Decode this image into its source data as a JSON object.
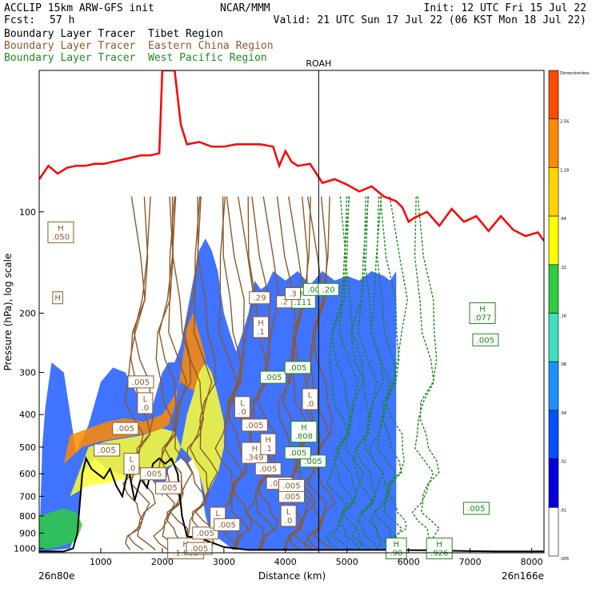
{
  "header": {
    "model": "ACCLIP 15km ARW-GFS init",
    "fcst_label": "Fcst:",
    "fcst_value": "57 h",
    "org": "NCAR/MMM",
    "init": "Init: 12 UTC Fri 15 Jul 22",
    "valid": "Valid: 21 UTC Sun 17 Jul 22 (06 KST Mon 18 Jul 22)"
  },
  "legend": [
    {
      "label": "Boundary Layer Tracer  Tibet Region",
      "color": "#000000"
    },
    {
      "label": "Boundary Layer Tracer  Eastern China Region",
      "color": "#8B5A2B"
    },
    {
      "label": "Boundary Layer Tracer  West Pacific Region",
      "color": "#228B22"
    }
  ],
  "colors": {
    "tropopause": "#ff0000",
    "terrain": "#000000",
    "tibet": "#000000",
    "china": "#8B5A2B",
    "pacific": "#1a8a1a"
  },
  "chart_data": {
    "type": "cross-section",
    "xlabel": "Distance (km)",
    "ylabel": "Pressure (hPa), log scale",
    "x_ticks": [
      1000,
      2000,
      3000,
      4000,
      5000,
      6000,
      7000,
      8000
    ],
    "xlim": [
      0,
      8200
    ],
    "y_ticks": [
      100,
      200,
      300,
      400,
      500,
      600,
      700,
      800,
      900,
      1000
    ],
    "ylim": [
      1030,
      38
    ],
    "y_scale": "log",
    "left_endpoint": "26n80e",
    "right_endpoint": "26n166e",
    "marker": {
      "label": "ROAH",
      "x": 4540
    },
    "colorbar": {
      "boundaries": [
        "Dimensionless",
        "2.56",
        "1.28",
        ".64",
        ".32",
        ".16",
        ".08",
        ".04",
        ".02",
        ".01",
        ".005"
      ],
      "colors": [
        "#ff4a00",
        "#ff8a00",
        "#ffd400",
        "#ffff00",
        "#2ecc40",
        "#3ee0c0",
        "#1e90ff",
        "#0050ff",
        "#0000dd",
        "#ffffff"
      ]
    },
    "tropopause_line": {
      "x": [
        0,
        150,
        300,
        450,
        600,
        750,
        900,
        1050,
        1200,
        1350,
        1500,
        1650,
        1800,
        1950,
        2000,
        2050,
        2200,
        2300,
        2400,
        2600,
        2800,
        3000,
        3200,
        3400,
        3600,
        3800,
        3900,
        4000,
        4100,
        4200,
        4400,
        4600,
        4800,
        5000,
        5200,
        5400,
        5600,
        5800,
        5900,
        6000,
        6100,
        6300,
        6500,
        6700,
        6900,
        7100,
        7300,
        7500,
        7700,
        7900,
        8100,
        8200
      ],
      "p": [
        80,
        73,
        77,
        74,
        73,
        73,
        72,
        72,
        71,
        70,
        69,
        68,
        68,
        67,
        38,
        38,
        38,
        55,
        63,
        62,
        64,
        64,
        63,
        63,
        63,
        64,
        73,
        66,
        71,
        73,
        72,
        82,
        80,
        83,
        87,
        84,
        90,
        93,
        97,
        107,
        104,
        100,
        110,
        98,
        107,
        103,
        114,
        103,
        113,
        118,
        115,
        122
      ]
    },
    "terrain_line": {
      "x": [
        0,
        200,
        400,
        550,
        620,
        700,
        760,
        850,
        950,
        1050,
        1150,
        1250,
        1350,
        1450,
        1550,
        1650,
        1750,
        1850,
        1950,
        2050,
        2150,
        2250,
        2320,
        2400,
        2600,
        2800,
        3000,
        3200,
        3400,
        3600,
        3800,
        4000,
        4200,
        4400,
        4600,
        4800,
        5000,
        5400,
        5800,
        6200,
        6600,
        7000,
        7400,
        7800,
        8200
      ],
      "p": [
        1020,
        1020,
        1020,
        1000,
        900,
        600,
        540,
        580,
        600,
        620,
        580,
        650,
        700,
        580,
        720,
        620,
        660,
        560,
        540,
        560,
        540,
        600,
        800,
        920,
        930,
        960,
        990,
        1000,
        1010,
        1010,
        1010,
        1010,
        1010,
        1010,
        1010,
        1010,
        1010,
        1010,
        1010,
        1012,
        1015,
        1018,
        1020,
        1020,
        1020
      ]
    },
    "shaded_layers": [
      {
        "name": "Dimensionless",
        "x": [
          0,
          500,
          600,
          700,
          900,
          1100,
          1300,
          1500,
          1700,
          1900,
          2000,
          2100,
          2200,
          2300,
          2400,
          2500,
          2600,
          2700,
          2800,
          2900,
          3000,
          3100,
          3200,
          3300,
          3400,
          3500,
          3600,
          3700,
          3800,
          3900,
          4000,
          4200,
          4400,
          4600,
          4800,
          5000,
          5200,
          5400,
          5600,
          5700,
          5800,
          5800,
          5700,
          5600,
          5400,
          5200,
          5000,
          4800,
          4600,
          4400,
          4200,
          4000,
          3900,
          3800,
          3700,
          3600,
          3500,
          3400,
          3300,
          3200,
          3100,
          3000,
          2900,
          2800,
          2700,
          2600,
          2500,
          2400,
          2300,
          2200,
          2100,
          2000,
          1800,
          1600,
          1400,
          1200,
          1000,
          800,
          600,
          400,
          200,
          100,
          50
        ],
        "p": [
          1020,
          1000,
          900,
          600,
          540,
          580,
          600,
          620,
          580,
          650,
          700,
          580,
          560,
          540,
          560,
          540,
          600,
          800,
          920,
          930,
          960,
          990,
          1000,
          1010,
          1010,
          1010,
          1010,
          1010,
          1010,
          1010,
          1010,
          1010,
          1010,
          1010,
          1010,
          1010,
          1010,
          1010,
          1010,
          1010,
          1010,
          150,
          160,
          155,
          150,
          160,
          155,
          160,
          150,
          165,
          150,
          160,
          155,
          150,
          165,
          170,
          160,
          200,
          230,
          260,
          230,
          200,
          150,
          130,
          120,
          130,
          160,
          200,
          250,
          280,
          280,
          300,
          400,
          350,
          300,
          290,
          320,
          430,
          520,
          300,
          280,
          380,
          500
        ]
      },
      {
        "name": "2.56",
        "x": [
          400,
          700,
          1000,
          1300,
          1600,
          1900,
          2100,
          2200,
          2300,
          2400,
          2500,
          2600,
          2700,
          2600,
          2500,
          2400,
          2300,
          2200,
          2000,
          1700,
          1400,
          1100,
          800,
          500,
          400
        ],
        "p": [
          560,
          500,
          480,
          470,
          460,
          450,
          430,
          380,
          300,
          220,
          200,
          230,
          270,
          320,
          340,
          330,
          320,
          350,
          400,
          420,
          410,
          420,
          440,
          460,
          560
        ]
      },
      {
        "name": "0.64",
        "x": [
          500,
          800,
          1100,
          1400,
          1700,
          2000,
          2200,
          2300,
          2400,
          2500,
          2600,
          2700,
          2800,
          2900,
          3000,
          3000,
          2900,
          2800,
          2700,
          2600,
          2500,
          2400,
          2300,
          2200,
          2000,
          1700,
          1400,
          1100,
          800,
          500
        ],
        "p": [
          700,
          650,
          640,
          620,
          600,
          580,
          560,
          500,
          400,
          350,
          300,
          280,
          300,
          350,
          420,
          500,
          600,
          650,
          700,
          600,
          550,
          520,
          500,
          450,
          440,
          460,
          470,
          480,
          500,
          700
        ]
      },
      {
        "name": "0.16",
        "x": [
          0,
          200,
          400,
          600,
          700,
          600,
          400,
          200,
          0
        ],
        "p": [
          800,
          780,
          760,
          780,
          850,
          950,
          980,
          1000,
          1000
        ]
      }
    ],
    "peak_labels": [
      {
        "text": "H\n.050",
        "x": 350,
        "p": 115,
        "series": "china"
      },
      {
        "text": "H",
        "x": 300,
        "p": 180,
        "series": "china"
      },
      {
        "text": ".005",
        "x": 1650,
        "p": 320,
        "series": "china"
      },
      {
        "text": "L\n.0",
        "x": 1720,
        "p": 370,
        "series": "china"
      },
      {
        "text": ".005",
        "x": 1400,
        "p": 440,
        "series": "china"
      },
      {
        "text": ".005",
        "x": 1100,
        "p": 510,
        "series": "china"
      },
      {
        "text": "L\n.0",
        "x": 1500,
        "p": 560,
        "series": "china"
      },
      {
        "text": ".005",
        "x": 1850,
        "p": 600,
        "series": "china"
      },
      {
        "text": ".005",
        "x": 2100,
        "p": 660,
        "series": "china"
      },
      {
        "text": "H\n.1.003",
        "x": 2380,
        "p": 1000,
        "series": "china"
      },
      {
        "text": ".005",
        "x": 2600,
        "p": 1000,
        "series": "china"
      },
      {
        "text": ".005",
        "x": 2700,
        "p": 900,
        "series": "china"
      },
      {
        "text": "L\n.0",
        "x": 2900,
        "p": 810,
        "series": "china"
      },
      {
        "text": ".005",
        "x": 3050,
        "p": 850,
        "series": "china"
      },
      {
        "text": "L\n.0",
        "x": 3300,
        "p": 380,
        "series": "china"
      },
      {
        "text": ".005",
        "x": 3500,
        "p": 430,
        "series": "china"
      },
      {
        "text": "H\n.349",
        "x": 3500,
        "p": 520,
        "series": "china"
      },
      {
        "text": ".005",
        "x": 3720,
        "p": 580,
        "series": "china"
      },
      {
        "text": "H\n.1",
        "x": 3720,
        "p": 490,
        "series": "china"
      },
      {
        "text": ".005",
        "x": 3900,
        "p": 640,
        "series": "china"
      },
      {
        "text": "L\n.0",
        "x": 4050,
        "p": 800,
        "series": "china"
      },
      {
        "text": ".005",
        "x": 4100,
        "p": 700,
        "series": "china"
      },
      {
        "text": ".005",
        "x": 4100,
        "p": 650,
        "series": "china"
      },
      {
        "text": "H\n.808",
        "x": 4300,
        "p": 450,
        "series": "pacific"
      },
      {
        "text": ".005",
        "x": 4450,
        "p": 550,
        "series": "pacific"
      },
      {
        "text": "H\n.111",
        "x": 4280,
        "p": 180,
        "series": "pacific"
      },
      {
        "text": ".005",
        "x": 4500,
        "p": 170,
        "series": "pacific"
      },
      {
        "text": ".20",
        "x": 4700,
        "p": 170,
        "series": "pacific"
      },
      {
        "text": ".005",
        "x": 3800,
        "p": 310,
        "series": "pacific"
      },
      {
        "text": ".005",
        "x": 4200,
        "p": 290,
        "series": "pacific"
      },
      {
        "text": "L\n.0",
        "x": 4400,
        "p": 360,
        "series": "china"
      },
      {
        "text": ".005",
        "x": 4200,
        "p": 520,
        "series": "pacific"
      },
      {
        "text": "H\n.077",
        "x": 7200,
        "p": 200,
        "series": "pacific"
      },
      {
        "text": ".005",
        "x": 7250,
        "p": 240,
        "series": "pacific"
      },
      {
        "text": ".005",
        "x": 7100,
        "p": 760,
        "series": "pacific"
      },
      {
        "text": "H\n.926",
        "x": 6500,
        "p": 1000,
        "series": "pacific"
      },
      {
        "text": "H\n.90",
        "x": 5800,
        "p": 1000,
        "series": "pacific"
      },
      {
        "text": ".29",
        "x": 3580,
        "p": 180,
        "series": "china"
      },
      {
        "text": ".2",
        "x": 3980,
        "p": 185,
        "series": "china"
      },
      {
        "text": "H\n.1",
        "x": 3600,
        "p": 220,
        "series": "china"
      },
      {
        "text": ".3",
        "x": 4120,
        "p": 175,
        "series": "china"
      }
    ]
  }
}
